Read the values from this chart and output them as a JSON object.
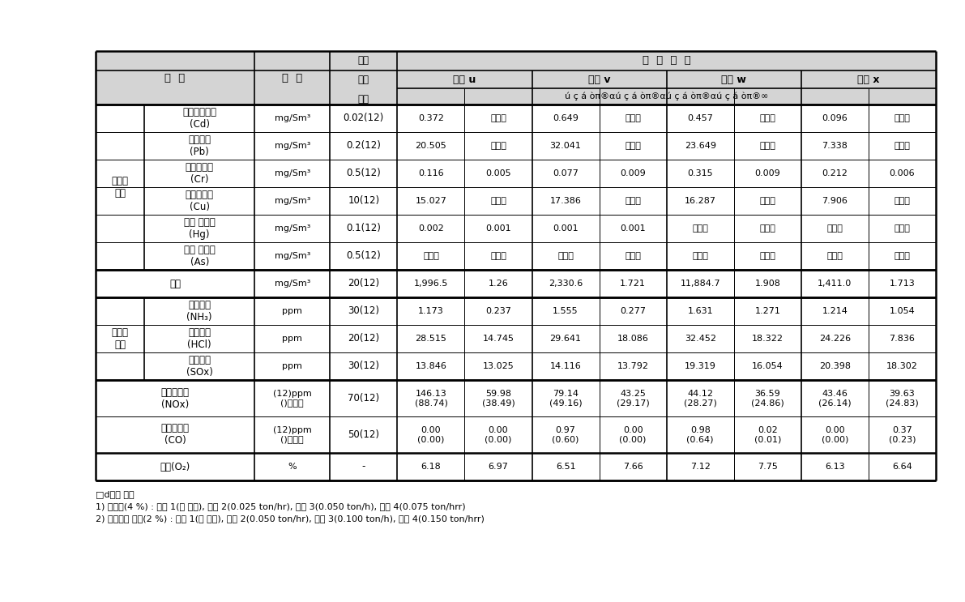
{
  "rows": [
    {
      "group": "입자상\n물질",
      "show_group": true,
      "group_span": 6,
      "name": "카드뮴화합물\n(Cd)",
      "unit": "mg/Sm³",
      "limit": "0.02(12)",
      "data": [
        "0.372",
        "불검출",
        "0.649",
        "불검출",
        "0.457",
        "불검출",
        "0.096",
        "불검출"
      ]
    },
    {
      "group": "입자상\n물질",
      "show_group": false,
      "group_span": 0,
      "name": "납화합물\n(Pb)",
      "unit": "mg/Sm³",
      "limit": "0.2(12)",
      "data": [
        "20.505",
        "불검출",
        "32.041",
        "불검출",
        "23.649",
        "불검출",
        "7.338",
        "불검출"
      ]
    },
    {
      "group": "입자상\n물질",
      "show_group": false,
      "group_span": 0,
      "name": "크롬화합물\n(Cr)",
      "unit": "mg/Sm³",
      "limit": "0.5(12)",
      "data": [
        "0.116",
        "0.005",
        "0.077",
        "0.009",
        "0.315",
        "0.009",
        "0.212",
        "0.006"
      ]
    },
    {
      "group": "입자상\n물질",
      "show_group": false,
      "group_span": 0,
      "name": "구리화합물\n(Cu)",
      "unit": "mg/Sm³",
      "limit": "10(12)",
      "data": [
        "15.027",
        "불검출",
        "17.386",
        "불검출",
        "16.287",
        "불검출",
        "7.906",
        "불검출"
      ]
    },
    {
      "group": "입자상\n물질",
      "show_group": false,
      "group_span": 0,
      "name": "수은 화합물\n(Hg)",
      "unit": "mg/Sm³",
      "limit": "0.1(12)",
      "data": [
        "0.002",
        "0.001",
        "0.001",
        "0.001",
        "불검출",
        "불검출",
        "불검출",
        "불검출"
      ]
    },
    {
      "group": "입자상\n물질",
      "show_group": false,
      "group_span": 0,
      "name": "비소 화합물\n(As)",
      "unit": "mg/Sm³",
      "limit": "0.5(12)",
      "data": [
        "불검출",
        "불검출",
        "불검출",
        "불검출",
        "불검출",
        "불검출",
        "불검출",
        "불검출"
      ]
    },
    {
      "group": "",
      "show_group": false,
      "group_span": 0,
      "name": "먼지",
      "unit": "mg/Sm³",
      "limit": "20(12)",
      "data": [
        "1,996.5",
        "1.26",
        "2,330.6",
        "1.721",
        "11,884.7",
        "1.908",
        "1,411.0",
        "1.713"
      ]
    },
    {
      "group": "가스상\n물질",
      "show_group": true,
      "group_span": 3,
      "name": "암모니아\n(NH₃)",
      "unit": "ppm",
      "limit": "30(12)",
      "data": [
        "1.173",
        "0.237",
        "1.555",
        "0.277",
        "1.631",
        "1.271",
        "1.214",
        "1.054"
      ]
    },
    {
      "group": "가스상\n물질",
      "show_group": false,
      "group_span": 0,
      "name": "염화수소\n(HCl)",
      "unit": "ppm",
      "limit": "20(12)",
      "data": [
        "28.515",
        "14.745",
        "29.641",
        "18.086",
        "32.452",
        "18.322",
        "24.226",
        "7.836"
      ]
    },
    {
      "group": "가스상\n물질",
      "show_group": false,
      "group_span": 0,
      "name": "황산화물\n(SOx)",
      "unit": "ppm",
      "limit": "30(12)",
      "data": [
        "13.846",
        "13.025",
        "14.116",
        "13.792",
        "19.319",
        "16.054",
        "20.398",
        "18.302"
      ]
    },
    {
      "group": "",
      "show_group": false,
      "group_span": 0,
      "name": "질소산화물\n(NOx)",
      "unit": "(12)ppm\n()실측값",
      "limit": "70(12)",
      "data": [
        "146.13\n(88.74)",
        "59.98\n(38.49)",
        "79.14\n(49.16)",
        "43.25\n(29.17)",
        "44.12\n(28.27)",
        "36.59\n(24.86)",
        "43.46\n(26.14)",
        "39.63\n(24.83)"
      ]
    },
    {
      "group": "",
      "show_group": false,
      "group_span": 0,
      "name": "일산화탄소\n(CO)",
      "unit": "(12)ppm\n()실측값",
      "limit": "50(12)",
      "data": [
        "0.00\n(0.00)",
        "0.00\n(0.00)",
        "0.97\n(0.60)",
        "0.00\n(0.00)",
        "0.98\n(0.64)",
        "0.02\n(0.01)",
        "0.00\n(0.00)",
        "0.37\n(0.23)"
      ]
    },
    {
      "group": "",
      "show_group": false,
      "group_span": 0,
      "name": "산소(O₂)",
      "unit": "%",
      "limit": "-",
      "data": [
        "6.18",
        "6.97",
        "6.51",
        "7.66",
        "7.12",
        "7.75",
        "6.13",
        "6.64"
      ]
    }
  ],
  "footnote_lines": [
    "□d투입 조건",
    "1) 요소수(4 %) : 조건 1(미 투입), 조건 2(0.025 ton/hr), 조건 3(0.050 ton/h), 조건 4(0.075 ton/hrr)",
    "2) 악액세정 폐수(2 %) : 조건 1(미 투입), 조건 2(0.050 ton/hr), 조건 3(0.100 ton/h), 조건 4(0.150 ton/hrr)"
  ],
  "header_bg": "#d4d4d4",
  "conditions": [
    "조건 u",
    "조건 v",
    "조건 w",
    "조건 x"
  ],
  "sub_cond_text": "ú ç á òπ®αú ç á òπ®αú ç á òπ®αú ç á òπ®∞"
}
